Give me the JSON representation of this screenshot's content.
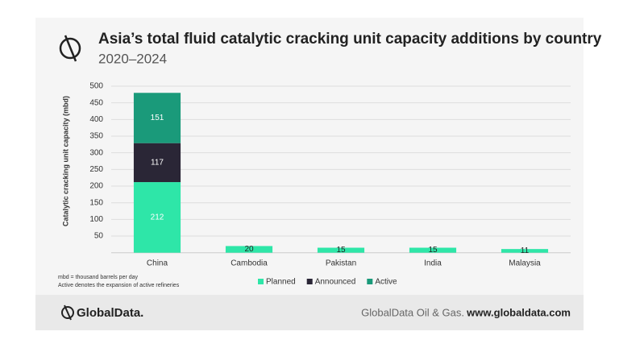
{
  "chart_data": {
    "type": "stacked_bar",
    "title": "Asia’s total fluid catalytic cracking unit capacity additions by country",
    "subtitle": "2020–2024",
    "y_label": "Catalytic cracking unit capacity (mbd)",
    "categories": [
      "China",
      "Cambodia",
      "Pakistan",
      "India",
      "Malaysia"
    ],
    "series": [
      {
        "name": "Planned",
        "color": "#2ee6a8",
        "values": [
          212,
          20,
          15,
          15,
          11
        ]
      },
      {
        "name": "Announced",
        "color": "#2a2636",
        "values": [
          117,
          0,
          0,
          0,
          0
        ]
      },
      {
        "name": "Active",
        "color": "#1a9a7a",
        "values": [
          151,
          0,
          0,
          0,
          0
        ]
      }
    ],
    "ylim": [
      0,
      500
    ],
    "yticks": [
      50,
      100,
      150,
      200,
      250,
      300,
      350,
      400,
      450,
      500
    ],
    "grid": true,
    "notes": [
      "mbd = thousand barrels per day",
      "Active denotes the expansion of active refineries"
    ],
    "footer": {
      "brand": "GlobalData.",
      "source": "GlobalData Oil & Gas.",
      "url": "www.globaldata.com"
    }
  }
}
